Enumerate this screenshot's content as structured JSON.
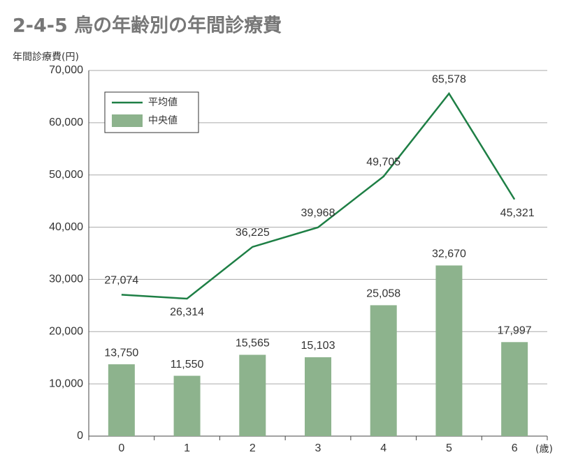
{
  "chart_data": {
    "type": "bar",
    "title": "2-4-5 鳥の年齢別の年間診療費",
    "y_label": "年間診療費(円)",
    "x_label": "(歳)",
    "categories": [
      "0",
      "1",
      "2",
      "3",
      "4",
      "5",
      "6"
    ],
    "series": [
      {
        "name": "平均値",
        "type": "line",
        "color": "#1e7f45",
        "values": [
          27074,
          26314,
          36225,
          39968,
          49705,
          65578,
          45321
        ],
        "value_labels": [
          "27,074",
          "26,314",
          "36,225",
          "39,968",
          "49,705",
          "65,578",
          "45,321"
        ]
      },
      {
        "name": "中央値",
        "type": "bar",
        "color": "#8db38d",
        "values": [
          13750,
          11550,
          15565,
          15103,
          25058,
          32670,
          17997
        ],
        "value_labels": [
          "13,750",
          "11,550",
          "15,565",
          "15,103",
          "25,058",
          "32,670",
          "17,997"
        ]
      }
    ],
    "ylim": [
      0,
      70000
    ],
    "yticks": [
      0,
      {
        "value": 10000,
        "label": "10,000"
      },
      {
        "value": 20000,
        "label": "20,000"
      },
      {
        "value": 30000,
        "label": "30,000"
      },
      {
        "value": 40000,
        "label": "40,000"
      },
      {
        "value": 50000,
        "label": "50,000"
      },
      {
        "value": 60000,
        "label": "60,000"
      },
      {
        "value": 70000,
        "label": "70,000"
      }
    ],
    "grid": true
  }
}
